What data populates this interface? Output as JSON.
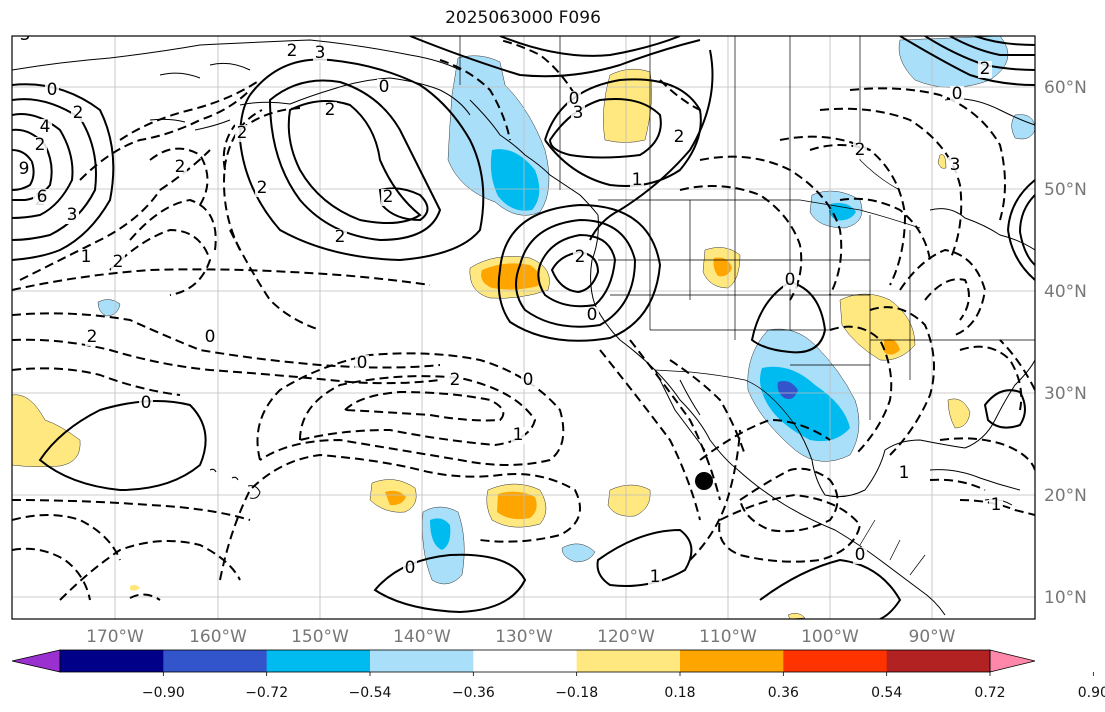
{
  "title": "2025063000 F096",
  "latitude_labels": [
    "60°N",
    "50°N",
    "40°N",
    "30°N",
    "20°N",
    "10°N"
  ],
  "longitude_labels": [
    "170°W",
    "160°W",
    "150°W",
    "140°W",
    "130°W",
    "120°W",
    "110°W",
    "100°W",
    "90°W"
  ],
  "contour_labels": [
    "0",
    "2",
    "2",
    "2",
    "2",
    "3",
    "2",
    "4",
    "6",
    "3",
    "9",
    "0",
    "2",
    "2",
    "2",
    "2",
    "2",
    "2",
    "1",
    "2",
    "0",
    "2",
    "0",
    "0",
    "2",
    "2",
    "1",
    "0",
    "1",
    "0",
    "0",
    "1",
    "2",
    "0",
    "3",
    "0",
    "2",
    "2",
    "1",
    "1",
    "0",
    "0",
    "3",
    "3"
  ],
  "colorbar": {
    "tick_labels": [
      "−0.90",
      "−0.72",
      "−0.54",
      "−0.36",
      "−0.18",
      "0.18",
      "0.36",
      "0.54",
      "0.72",
      "0.90"
    ],
    "colors": [
      "#9b30d0",
      "#000088",
      "#3355cc",
      "#00bbf0",
      "#aadffa",
      "#ffffff",
      "#ffe880",
      "#ffa500",
      "#ff3300",
      "#b22222",
      "#ff88aa"
    ]
  },
  "shading_colors": {
    "light_blue": "#aadffa",
    "blue": "#00bbf0",
    "dark_blue": "#3355cc",
    "light_yellow": "#ffe880",
    "orange": "#ffa500"
  },
  "marker": "filled-circle"
}
